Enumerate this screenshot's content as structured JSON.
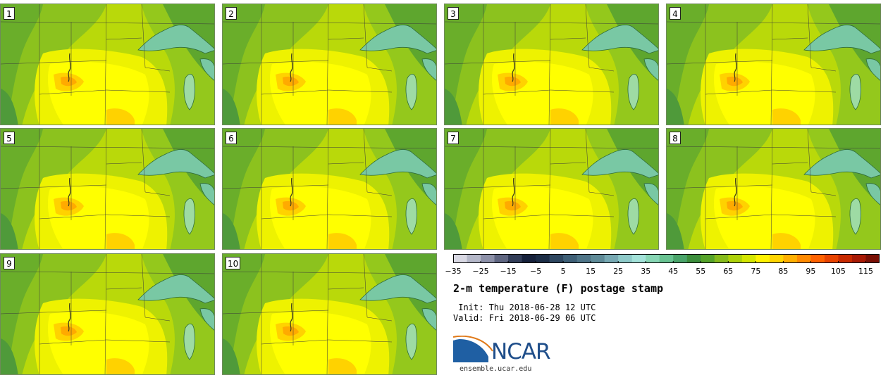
{
  "stamps": [
    {
      "label": "1"
    },
    {
      "label": "2"
    },
    {
      "label": "3"
    },
    {
      "label": "4"
    },
    {
      "label": "5"
    },
    {
      "label": "6"
    },
    {
      "label": "7"
    },
    {
      "label": "8"
    },
    {
      "label": "9"
    },
    {
      "label": "10"
    }
  ],
  "colorbar": {
    "min": -35,
    "max": 120,
    "step": 5,
    "tick_labels": [
      "-35",
      "-25",
      "-15",
      "-5",
      "5",
      "15",
      "25",
      "35",
      "45",
      "55",
      "65",
      "75",
      "85",
      "95",
      "105",
      "115"
    ],
    "colors": [
      "#d8d8e3",
      "#b4b7c8",
      "#8c90a8",
      "#5f6681",
      "#323d58",
      "#16213b",
      "#1c2d46",
      "#2e4760",
      "#3e5f76",
      "#4f7588",
      "#5f8b98",
      "#77a9b3",
      "#8ecac9",
      "#a3e2d9",
      "#87d6b4",
      "#68c291",
      "#4aa46a",
      "#3c8e3c",
      "#56a32a",
      "#86bb1c",
      "#aed20a",
      "#d4e600",
      "#fff200",
      "#ffd500",
      "#ffb000",
      "#ff8a00",
      "#ff6200",
      "#e84300",
      "#c82a00",
      "#a81a05",
      "#7a1005"
    ]
  },
  "title": "2-m temperature (F) postage stamp",
  "init": " Init: Thu 2018-06-28 12 UTC",
  "valid": "Valid: Fri 2018-06-29 06 UTC",
  "logo": {
    "text": "NCAR",
    "url": "ensemble.ucar.edu"
  }
}
